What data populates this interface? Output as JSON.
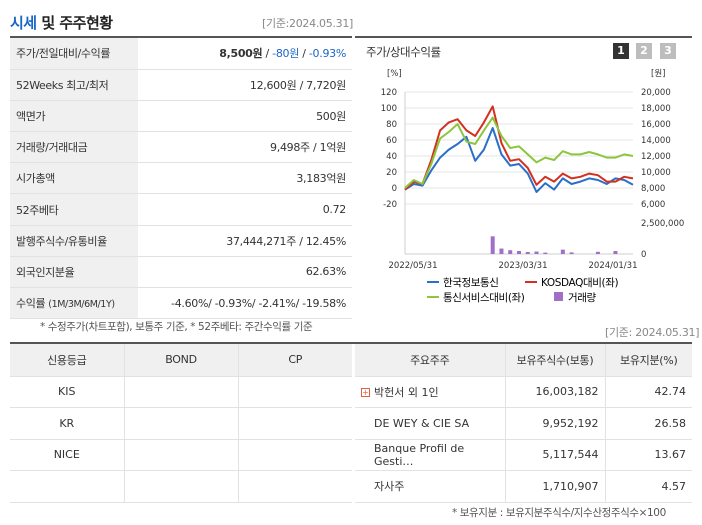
{
  "header": {
    "title_prefix": "시세",
    "title_suffix": "및 주주현황",
    "base_date": "[기준:2024.05.31]"
  },
  "price_table": {
    "rows": [
      {
        "label": "주가/전일대비/수익률",
        "value": "8,500원",
        "change": "-80원",
        "rate": "-0.93%"
      },
      {
        "label": "52Weeks 최고/최저",
        "value": "12,600원 / 7,720원"
      },
      {
        "label": "액면가",
        "value": "500원"
      },
      {
        "label": "거래량/거래대금",
        "value": "9,498주 / 1억원"
      },
      {
        "label": "시가총액",
        "value": "3,183억원"
      },
      {
        "label": "52주베타",
        "value": "0.72"
      },
      {
        "label": "발행주식수/유통비율",
        "value": "37,444,271주 / 12.45%"
      },
      {
        "label": "외국인지분율",
        "value": "62.63%"
      },
      {
        "label": "수익률",
        "label_small": "(1M/3M/6M/1Y)",
        "value": "-4.60%/ -0.93%/ -2.41%/ -19.58%"
      }
    ],
    "note": "* 수정주가(차트포함), 보통주 기준, * 52주베타: 주간수익률 기준"
  },
  "chart": {
    "title": "주가/상대수익률",
    "tabs": [
      "1",
      "2",
      "3"
    ],
    "tab_colors": [
      "#333333",
      "#bdbdbd",
      "#bdbdbd"
    ]
  },
  "chart_data": {
    "type": "line",
    "x_ticks": [
      "2022/05/31",
      "2023/03/31",
      "2024/01/31"
    ],
    "left_unit": "[%]",
    "right_unit": "[원]",
    "left_ticks": [
      "120",
      "100",
      "80",
      "60",
      "40",
      "20",
      "0",
      "-20"
    ],
    "right_ticks": [
      "20,000",
      "18,000",
      "16,000",
      "14,000",
      "12,000",
      "10,000",
      "8,000",
      "6,000"
    ],
    "left_ylim": [
      -20,
      120
    ],
    "volume_ticks": [
      "2,500,000",
      "0"
    ],
    "volume_ylim": [
      0,
      2500000
    ],
    "series": [
      {
        "name": "한국정보통신",
        "color": "#2a6fc9",
        "values": [
          -2,
          5,
          3,
          22,
          38,
          48,
          55,
          64,
          34,
          48,
          75,
          42,
          28,
          30,
          18,
          -5,
          6,
          -2,
          12,
          5,
          8,
          12,
          10,
          5,
          12,
          10,
          4
        ]
      },
      {
        "name": "KOSDAQ대비(좌)",
        "color": "#d4301f",
        "values": [
          -2,
          8,
          5,
          35,
          72,
          82,
          86,
          72,
          65,
          82,
          102,
          56,
          34,
          36,
          25,
          4,
          14,
          8,
          18,
          12,
          14,
          18,
          16,
          8,
          8,
          14,
          12
        ]
      },
      {
        "name": "통신서비스대비(좌)",
        "color": "#8cc63e",
        "values": [
          0,
          10,
          5,
          30,
          62,
          70,
          80,
          58,
          55,
          72,
          88,
          65,
          50,
          52,
          42,
          32,
          38,
          35,
          46,
          42,
          42,
          45,
          42,
          38,
          38,
          42,
          40
        ]
      }
    ],
    "volume": {
      "name": "거래량",
      "color": "#a070c8",
      "values": [
        0,
        0,
        0,
        0,
        0,
        0,
        0,
        0,
        0,
        0,
        1300000,
        400000,
        280000,
        220000,
        150000,
        180000,
        100000,
        0,
        320000,
        120000,
        0,
        0,
        160000,
        0,
        220000,
        0,
        0
      ]
    }
  },
  "credit_table": {
    "headers": [
      "신용등급",
      "BOND",
      "CP"
    ],
    "rows": [
      [
        "KIS",
        "",
        ""
      ],
      [
        "KR",
        "",
        ""
      ],
      [
        "NICE",
        "",
        ""
      ],
      [
        "",
        "",
        ""
      ]
    ]
  },
  "holders_table": {
    "base_date": "[기준: 2024.05.31]",
    "headers": [
      "주요주주",
      "보유주식수(보통)",
      "보유지분(%)"
    ],
    "rows": [
      [
        "박헌서 외 1인",
        "16,003,182",
        "42.74"
      ],
      [
        "DE WEY & CIE SA",
        "9,952,192",
        "26.58"
      ],
      [
        "Banque Profil de Gesti…",
        "5,117,544",
        "13.67"
      ],
      [
        "자사주",
        "1,710,907",
        "4.57"
      ]
    ],
    "note": "* 보유지분 : 보유지분주식수/지수산정주식수×100"
  }
}
